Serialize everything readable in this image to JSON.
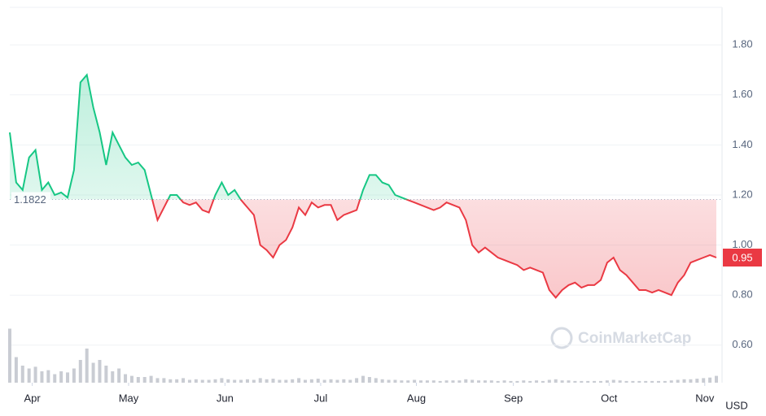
{
  "chart_data": {
    "type": "line",
    "values": [
      1.45,
      1.25,
      1.22,
      1.35,
      1.38,
      1.22,
      1.25,
      1.2,
      1.21,
      1.19,
      1.3,
      1.65,
      1.68,
      1.55,
      1.45,
      1.32,
      1.45,
      1.4,
      1.35,
      1.32,
      1.33,
      1.3,
      1.2,
      1.1,
      1.15,
      1.2,
      1.2,
      1.17,
      1.16,
      1.17,
      1.14,
      1.13,
      1.2,
      1.25,
      1.2,
      1.22,
      1.18,
      1.15,
      1.12,
      1.0,
      0.98,
      0.95,
      1.0,
      1.02,
      1.07,
      1.15,
      1.12,
      1.17,
      1.15,
      1.16,
      1.16,
      1.1,
      1.12,
      1.13,
      1.14,
      1.22,
      1.28,
      1.28,
      1.25,
      1.24,
      1.2,
      1.19,
      1.18,
      1.17,
      1.16,
      1.15,
      1.14,
      1.15,
      1.17,
      1.16,
      1.15,
      1.1,
      1.0,
      0.97,
      0.99,
      0.97,
      0.95,
      0.94,
      0.93,
      0.92,
      0.9,
      0.91,
      0.9,
      0.89,
      0.82,
      0.79,
      0.82,
      0.84,
      0.85,
      0.83,
      0.84,
      0.84,
      0.86,
      0.93,
      0.95,
      0.9,
      0.88,
      0.85,
      0.82,
      0.82,
      0.81,
      0.82,
      0.81,
      0.8,
      0.85,
      0.88,
      0.93,
      0.94,
      0.95,
      0.96,
      0.95
    ],
    "volume": [
      95,
      45,
      30,
      25,
      28,
      20,
      22,
      15,
      20,
      18,
      25,
      40,
      60,
      35,
      40,
      30,
      20,
      25,
      15,
      12,
      10,
      10,
      12,
      8,
      8,
      6,
      6,
      8,
      5,
      6,
      5,
      5,
      6,
      8,
      6,
      5,
      5,
      6,
      5,
      8,
      6,
      7,
      5,
      5,
      6,
      8,
      5,
      6,
      7,
      5,
      6,
      5,
      6,
      5,
      8,
      12,
      10,
      8,
      6,
      5,
      5,
      4,
      4,
      5,
      4,
      4,
      4,
      3,
      4,
      4,
      4,
      6,
      5,
      4,
      4,
      4,
      3,
      4,
      3,
      3,
      4,
      3,
      4,
      3,
      5,
      6,
      4,
      4,
      3,
      3,
      3,
      3,
      3,
      4,
      5,
      4,
      3,
      3,
      3,
      3,
      3,
      3,
      3,
      4,
      5,
      6,
      6,
      7,
      8,
      9,
      12
    ],
    "xlim": [
      0,
      110
    ],
    "xticks": [
      {
        "value": 3.5,
        "label": "Apr"
      },
      {
        "value": 18.5,
        "label": "May"
      },
      {
        "value": 33.5,
        "label": "Jun"
      },
      {
        "value": 48.4,
        "label": "Jul"
      },
      {
        "value": 63.3,
        "label": "Aug"
      },
      {
        "value": 78.4,
        "label": "Sep"
      },
      {
        "value": 93.3,
        "label": "Oct"
      },
      {
        "value": 108.2,
        "label": "Nov"
      }
    ],
    "ylim": [
      0.45,
      1.95
    ],
    "yticks": [
      {
        "value": 0.6,
        "label": "0.60"
      },
      {
        "value": 0.8,
        "label": "0.80"
      },
      {
        "value": 1.0,
        "label": "1.00"
      },
      {
        "value": 1.2,
        "label": "1.20"
      },
      {
        "value": 1.4,
        "label": "1.40"
      },
      {
        "value": 1.6,
        "label": "1.60"
      },
      {
        "value": 1.8,
        "label": "1.80"
      }
    ],
    "baseline": 1.1822,
    "last_price": 0.95,
    "currency": "USD",
    "watermark": "CoinMarketCap",
    "colors": {
      "up": "#16c784",
      "down": "#ea3943",
      "volume": "#c9ccd3"
    },
    "grid": true
  }
}
